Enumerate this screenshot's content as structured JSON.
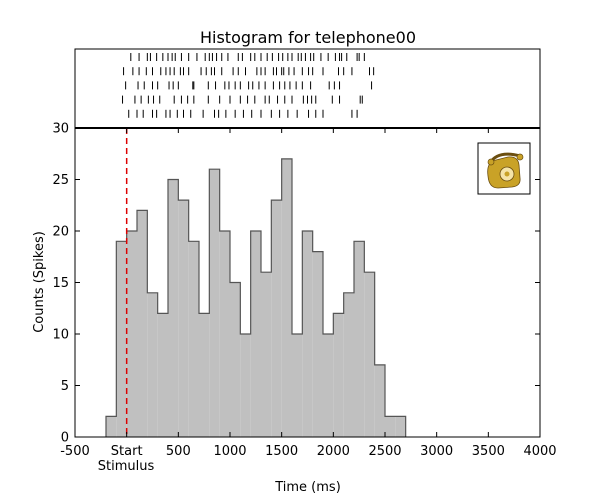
{
  "chart_data": {
    "type": "bar",
    "title": "Histogram for telephone00",
    "xlabel": "Time (ms)",
    "ylabel": "Counts (Spikes)",
    "xlim": [
      -500,
      4000
    ],
    "ylim": [
      0,
      30
    ],
    "x_ticks": [
      {
        "value": -500,
        "label": "-500"
      },
      {
        "value": 0,
        "label": "Start"
      },
      {
        "value": 500,
        "label": "500"
      },
      {
        "value": 1000,
        "label": "1000"
      },
      {
        "value": 1500,
        "label": "1500"
      },
      {
        "value": 2000,
        "label": "2000"
      },
      {
        "value": 2500,
        "label": "2500"
      },
      {
        "value": 3000,
        "label": "3000"
      },
      {
        "value": 3500,
        "label": "3500"
      },
      {
        "value": 4000,
        "label": "4000"
      }
    ],
    "x_sublabel": "Stimulus",
    "y_ticks": [
      0,
      5,
      10,
      15,
      20,
      25,
      30
    ],
    "bin_width_ms": 100,
    "bin_starts_ms": [
      -200,
      -100,
      0,
      100,
      200,
      300,
      400,
      500,
      600,
      700,
      800,
      900,
      1000,
      1100,
      1200,
      1300,
      1400,
      1500,
      1600,
      1700,
      1800,
      1900,
      2000,
      2100,
      2200,
      2300,
      2400,
      2500,
      2600
    ],
    "values": [
      2,
      19,
      20,
      22,
      14,
      12,
      25,
      23,
      19,
      12,
      26,
      20,
      15,
      10,
      20,
      16,
      23,
      27,
      10,
      20,
      18,
      10,
      12,
      14,
      19,
      16,
      7,
      2,
      2
    ],
    "stimulus_onset_ms": 0,
    "stimulus_line_color": "#dd0000",
    "bar_fill_color": "#c0c0c0",
    "bar_edge_color": "#555555",
    "grid": false,
    "legend": "none",
    "inset_icon": "telephone-icon",
    "raster": {
      "trials": [
        [
          40,
          120,
          200,
          230,
          290,
          350,
          400,
          440,
          470,
          530,
          600,
          680,
          760,
          800,
          830,
          870,
          920,
          980,
          1080,
          1120,
          1200,
          1240,
          1300,
          1360,
          1410,
          1470,
          1510,
          1560,
          1600,
          1660,
          1690,
          1730,
          1780,
          1810,
          1880,
          1950,
          2020,
          2060,
          2080,
          2130,
          2230,
          2250,
          2300
        ],
        [
          -30,
          60,
          120,
          190,
          250,
          330,
          380,
          420,
          460,
          520,
          550,
          600,
          720,
          770,
          820,
          850,
          920,
          1030,
          1080,
          1150,
          1260,
          1300,
          1340,
          1420,
          1450,
          1500,
          1520,
          1570,
          1620,
          1700,
          1760,
          1800,
          1900,
          2050,
          2100,
          2180,
          2350,
          2390
        ],
        [
          -10,
          110,
          170,
          250,
          300,
          410,
          450,
          500,
          640,
          650,
          790,
          860,
          950,
          990,
          1050,
          1100,
          1180,
          1220,
          1280,
          1340,
          1420,
          1480,
          1530,
          1580,
          1640,
          1700,
          1780,
          1960,
          2010,
          2060,
          2370
        ],
        [
          -40,
          80,
          140,
          210,
          260,
          320,
          460,
          530,
          590,
          650,
          790,
          900,
          1000,
          1100,
          1170,
          1240,
          1340,
          1380,
          1460,
          1530,
          1600,
          1710,
          1750,
          1790,
          1830,
          1990,
          2060,
          2260,
          2280
        ],
        [
          20,
          100,
          160,
          250,
          290,
          380,
          420,
          490,
          550,
          620,
          740,
          850,
          890,
          960,
          1050,
          1130,
          1210,
          1300,
          1400,
          1480,
          1560,
          1650,
          1760,
          1830,
          1900,
          2180,
          2230
        ]
      ]
    }
  }
}
